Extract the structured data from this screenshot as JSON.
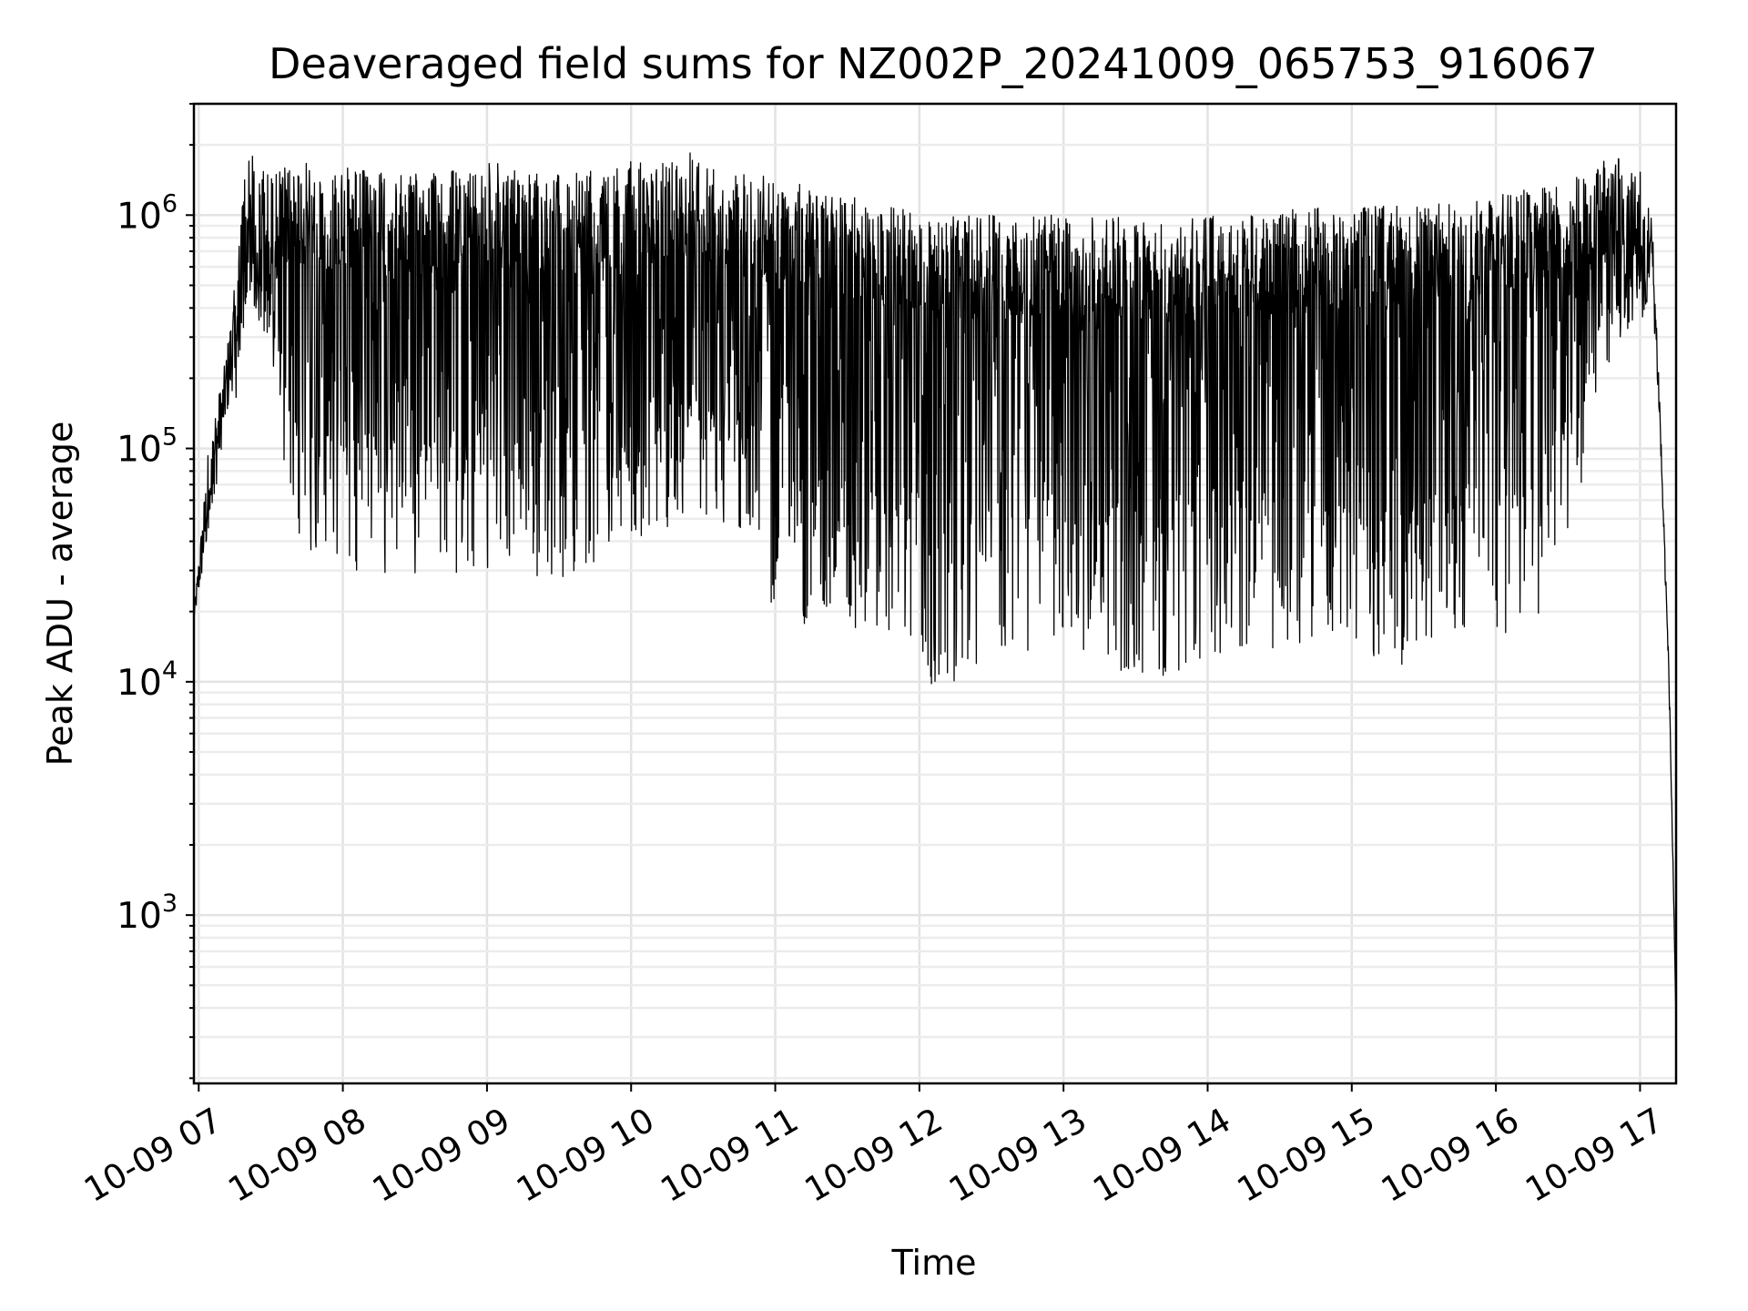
{
  "chart_data": {
    "type": "line",
    "title": "Deaveraged field sums for NZ002P_20241009_065753_916067",
    "xlabel": "Time",
    "ylabel": "Peak ADU - average",
    "yscale": "log",
    "ylim": [
      190,
      3000000
    ],
    "xlim": [
      "2024-10-09T06:58:00",
      "2024-10-09T17:15:00"
    ],
    "grid": "major and minor",
    "line_color": "#000000",
    "x_ticks": [
      {
        "x": "2024-10-09T07:00:00",
        "label": "10-09 07"
      },
      {
        "x": "2024-10-09T08:00:00",
        "label": "10-09 08"
      },
      {
        "x": "2024-10-09T09:00:00",
        "label": "10-09 09"
      },
      {
        "x": "2024-10-09T10:00:00",
        "label": "10-09 10"
      },
      {
        "x": "2024-10-09T11:00:00",
        "label": "10-09 11"
      },
      {
        "x": "2024-10-09T12:00:00",
        "label": "10-09 12"
      },
      {
        "x": "2024-10-09T13:00:00",
        "label": "10-09 13"
      },
      {
        "x": "2024-10-09T14:00:00",
        "label": "10-09 14"
      },
      {
        "x": "2024-10-09T15:00:00",
        "label": "10-09 15"
      },
      {
        "x": "2024-10-09T16:00:00",
        "label": "10-09 16"
      },
      {
        "x": "2024-10-09T17:00:00",
        "label": "10-09 17"
      }
    ],
    "y_ticks": [
      {
        "value": 1000,
        "base": "10",
        "exp": "3"
      },
      {
        "value": 10000,
        "base": "10",
        "exp": "4"
      },
      {
        "value": 100000,
        "base": "10",
        "exp": "5"
      },
      {
        "value": 1000000,
        "base": "10",
        "exp": "6"
      }
    ],
    "series": [
      {
        "envelope": [
          {
            "x": "2024-10-09T06:58:00",
            "low": 18000,
            "high": 20000
          },
          {
            "x": "2024-10-09T07:05:00",
            "low": 45000,
            "high": 130000
          },
          {
            "x": "2024-10-09T07:10:00",
            "low": 110000,
            "high": 200000
          },
          {
            "x": "2024-10-09T07:15:00",
            "low": 200000,
            "high": 500000
          },
          {
            "x": "2024-10-09T07:20:00",
            "low": 400000,
            "high": 2000000
          },
          {
            "x": "2024-10-09T07:30:00",
            "low": 250000,
            "high": 1500000
          },
          {
            "x": "2024-10-09T07:40:00",
            "low": 35000,
            "high": 1700000
          },
          {
            "x": "2024-10-09T08:00:00",
            "low": 30000,
            "high": 1600000
          },
          {
            "x": "2024-10-09T08:30:00",
            "low": 28000,
            "high": 1500000
          },
          {
            "x": "2024-10-09T09:00:00",
            "low": 28000,
            "high": 1700000
          },
          {
            "x": "2024-10-09T09:30:00",
            "low": 27000,
            "high": 1500000
          },
          {
            "x": "2024-10-09T10:00:00",
            "low": 40000,
            "high": 1700000
          },
          {
            "x": "2024-10-09T10:25:00",
            "low": 50000,
            "high": 1900000
          },
          {
            "x": "2024-10-09T10:45:00",
            "low": 45000,
            "high": 1500000
          },
          {
            "x": "2024-10-09T11:00:00",
            "low": 19000,
            "high": 1500000
          },
          {
            "x": "2024-10-09T11:30:00",
            "low": 16000,
            "high": 1200000
          },
          {
            "x": "2024-10-09T12:00:00",
            "low": 14000,
            "high": 1100000
          },
          {
            "x": "2024-10-09T12:08:00",
            "low": 7700,
            "high": 1000000
          },
          {
            "x": "2024-10-09T12:30:00",
            "low": 14000,
            "high": 1000000
          },
          {
            "x": "2024-10-09T13:00:00",
            "low": 13000,
            "high": 1000000
          },
          {
            "x": "2024-10-09T13:20:00",
            "low": 10500,
            "high": 1000000
          },
          {
            "x": "2024-10-09T13:45:00",
            "low": 10500,
            "high": 1000000
          },
          {
            "x": "2024-10-09T14:00:00",
            "low": 13000,
            "high": 1000000
          },
          {
            "x": "2024-10-09T14:30:00",
            "low": 14000,
            "high": 1050000
          },
          {
            "x": "2024-10-09T15:00:00",
            "low": 12500,
            "high": 1100000
          },
          {
            "x": "2024-10-09T15:20:00",
            "low": 11500,
            "high": 1100000
          },
          {
            "x": "2024-10-09T15:45:00",
            "low": 15000,
            "high": 1150000
          },
          {
            "x": "2024-10-09T16:15:00",
            "low": 15500,
            "high": 1300000
          },
          {
            "x": "2024-10-09T16:30:00",
            "low": 40000,
            "high": 1400000
          },
          {
            "x": "2024-10-09T16:45:00",
            "low": 180000,
            "high": 1750000
          },
          {
            "x": "2024-10-09T17:00:00",
            "low": 500000,
            "high": 1750000
          },
          {
            "x": "2024-10-09T17:05:00",
            "low": 500000,
            "high": 1000000
          },
          {
            "x": "2024-10-09T17:08:00",
            "low": 130000,
            "high": 200000
          },
          {
            "x": "2024-10-09T17:12:00",
            "low": 10000,
            "high": 12000
          },
          {
            "x": "2024-10-09T17:14:00",
            "low": 1000,
            "high": 1500
          },
          {
            "x": "2024-10-09T17:15:00",
            "low": 290,
            "high": 320
          }
        ]
      }
    ]
  }
}
